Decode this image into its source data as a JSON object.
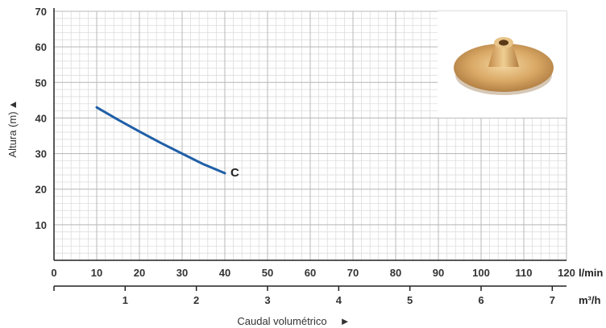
{
  "chart_data": {
    "type": "line",
    "ylabel": "Altura (m)",
    "xlabel": "Caudal volumétrico",
    "x_unit": "l/min",
    "x2_unit": "m³/h",
    "xlim": [
      0,
      120
    ],
    "ylim": [
      0,
      70
    ],
    "x_ticks": [
      0,
      10,
      20,
      30,
      40,
      50,
      60,
      70,
      80,
      90,
      100,
      110,
      120
    ],
    "y_ticks": [
      10,
      20,
      30,
      40,
      50,
      60,
      70
    ],
    "x2_ticks": [
      1,
      2,
      3,
      4,
      5,
      6,
      7
    ],
    "grid": true,
    "series": [
      {
        "name": "C",
        "color": "#1f5fa8",
        "x": [
          10,
          15,
          20,
          25,
          30,
          35,
          40
        ],
        "y": [
          43,
          39.5,
          36.2,
          33,
          30,
          27,
          24.5
        ]
      }
    ],
    "inset_image": "impeller-photo"
  },
  "labels": {
    "ylabel_arrow": "▲",
    "xlabel_arrow": "►"
  }
}
